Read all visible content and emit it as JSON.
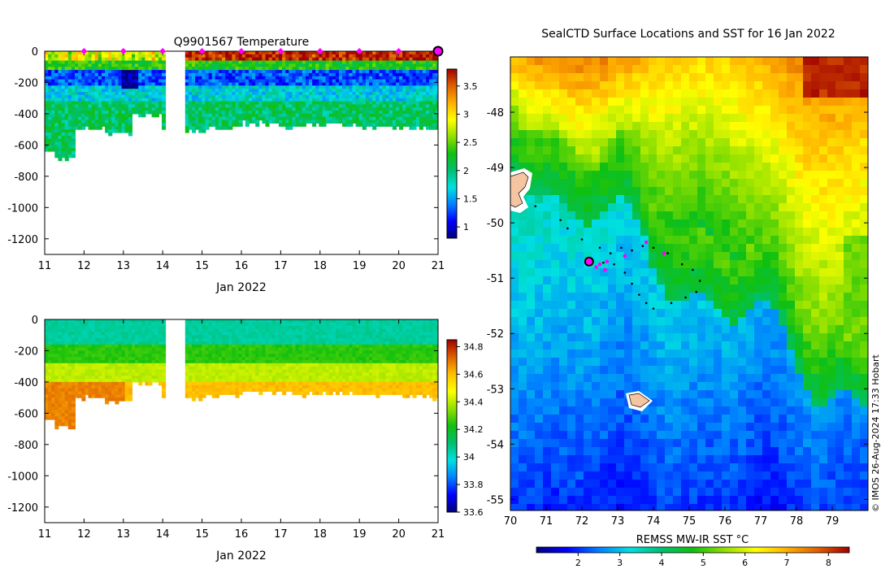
{
  "colors": {
    "temp_scale": [
      "#00007f",
      "#0000ff",
      "#0080ff",
      "#00e0e0",
      "#00c070",
      "#10c010",
      "#90e000",
      "#ffff00",
      "#ffb000",
      "#e06000",
      "#a00000"
    ],
    "sal_scale": [
      "#00007f",
      "#0000ff",
      "#0080ff",
      "#00e0e0",
      "#00c070",
      "#10c010",
      "#90e000",
      "#ffff00",
      "#ffc000",
      "#e06000",
      "#a00000"
    ],
    "sst_scale": [
      "#00007f",
      "#0000ff",
      "#0080ff",
      "#00e0e0",
      "#00c070",
      "#10c010",
      "#90e000",
      "#ffff00",
      "#ffb000",
      "#e06000",
      "#a00000"
    ],
    "surface_marker": "#ff00ff",
    "track_point": "#000000",
    "land": "#f5c4a0"
  },
  "chart_data": [
    {
      "type": "heatmap",
      "name": "temperature-section",
      "title": "Q9901567  Temperature",
      "xlabel": "Jan 2022",
      "ylabel": "",
      "x_ticks": [
        "11",
        "12",
        "13",
        "14",
        "15",
        "16",
        "17",
        "18",
        "19",
        "20",
        "21"
      ],
      "xlim": [
        11,
        21
      ],
      "y_ticks": [
        "0",
        "-200",
        "-400",
        "-600",
        "-800",
        "-1000",
        "-1200"
      ],
      "ylim": [
        -1300,
        0
      ],
      "colorbar": {
        "ticks": [
          "1",
          "1.5",
          "2",
          "2.5",
          "3",
          "3.5"
        ],
        "range": [
          0.8,
          3.8
        ]
      },
      "surface_markers_days": [
        12,
        13,
        14,
        15,
        16,
        17,
        18,
        19,
        20
      ],
      "last_profile_marker_day": 21,
      "gap_days": [
        14.05,
        14.55
      ],
      "profile_depth_bottoms": [
        {
          "day": 11.0,
          "depth": 635
        },
        {
          "day": 11.5,
          "depth": 680
        },
        {
          "day": 12.0,
          "depth": 490
        },
        {
          "day": 13.0,
          "depth": 515
        },
        {
          "day": 13.3,
          "depth": 400
        },
        {
          "day": 14.6,
          "depth": 495
        },
        {
          "day": 15.5,
          "depth": 475
        },
        {
          "day": 16.5,
          "depth": 450
        },
        {
          "day": 17.5,
          "depth": 470
        },
        {
          "day": 18.5,
          "depth": 460
        },
        {
          "day": 19.5,
          "depth": 475
        },
        {
          "day": 20.5,
          "depth": 480
        },
        {
          "day": 21.0,
          "depth": 490
        }
      ],
      "layers": [
        {
          "from": 0,
          "to": 60,
          "value": 3.6
        },
        {
          "from": 60,
          "to": 120,
          "value": 2.3
        },
        {
          "from": 120,
          "to": 220,
          "value": 1.3
        },
        {
          "from": 220,
          "to": 320,
          "value": 1.7
        },
        {
          "from": 320,
          "to": 700,
          "value": 2.05
        }
      ]
    },
    {
      "type": "heatmap",
      "name": "salinity-section",
      "title": "",
      "xlabel": "Jan 2022",
      "ylabel": "",
      "x_ticks": [
        "11",
        "12",
        "13",
        "14",
        "15",
        "16",
        "17",
        "18",
        "19",
        "20",
        "21"
      ],
      "xlim": [
        11,
        21
      ],
      "y_ticks": [
        "0",
        "-200",
        "-400",
        "-600",
        "-800",
        "-1000",
        "-1200"
      ],
      "ylim": [
        -1300,
        0
      ],
      "colorbar": {
        "ticks": [
          "33.6",
          "33.8",
          "34",
          "34.2",
          "34.4",
          "34.6",
          "34.8"
        ],
        "range": [
          33.6,
          34.85
        ]
      },
      "layers": [
        {
          "from": 0,
          "to": 150,
          "value": 34.05
        },
        {
          "from": 150,
          "to": 280,
          "value": 34.25
        },
        {
          "from": 280,
          "to": 400,
          "value": 34.4
        },
        {
          "from": 400,
          "to": 700,
          "value": 34.6
        }
      ]
    },
    {
      "type": "heatmap",
      "name": "sst-map",
      "title": "SealCTD Surface Locations and SST for 16 Jan 2022",
      "xlabel": "",
      "ylabel": "",
      "x_ticks": [
        "70",
        "71",
        "72",
        "73",
        "74",
        "75",
        "76",
        "77",
        "78",
        "79"
      ],
      "xlim": [
        70,
        80
      ],
      "y_ticks": [
        "-48",
        "-49",
        "-50",
        "-51",
        "-52",
        "-53",
        "-54",
        "-55"
      ],
      "ylim": [
        -55.2,
        -47.0
      ],
      "colorbar": {
        "label": "REMSS MW-IR SST °C",
        "ticks": [
          "2",
          "3",
          "4",
          "5",
          "6",
          "7",
          "8"
        ],
        "range": [
          1.0,
          8.5
        ]
      },
      "latest_position": {
        "lon": 72.2,
        "lat": -50.7
      },
      "track": [
        [
          70.7,
          -49.7
        ],
        [
          71.4,
          -49.95
        ],
        [
          71.6,
          -50.1
        ],
        [
          72.0,
          -50.3
        ],
        [
          72.5,
          -50.45
        ],
        [
          72.8,
          -50.55
        ],
        [
          73.1,
          -50.45
        ],
        [
          73.4,
          -50.5
        ],
        [
          73.7,
          -50.42
        ],
        [
          74.0,
          -50.45
        ],
        [
          74.4,
          -50.55
        ],
        [
          74.8,
          -50.75
        ],
        [
          75.1,
          -50.85
        ],
        [
          75.3,
          -51.05
        ],
        [
          75.2,
          -51.25
        ],
        [
          74.9,
          -51.35
        ],
        [
          74.5,
          -51.45
        ],
        [
          74.0,
          -51.55
        ],
        [
          73.8,
          -51.45
        ],
        [
          73.6,
          -51.3
        ],
        [
          73.4,
          -51.1
        ],
        [
          73.2,
          -50.9
        ],
        [
          72.9,
          -50.75
        ],
        [
          72.6,
          -50.72
        ]
      ],
      "surface_locations": [
        [
          72.5,
          -50.75
        ],
        [
          72.7,
          -50.7
        ],
        [
          73.2,
          -50.6
        ],
        [
          73.8,
          -50.35
        ],
        [
          74.3,
          -50.55
        ],
        [
          72.4,
          -50.8
        ],
        [
          72.65,
          -50.85
        ]
      ]
    }
  ],
  "watermark": "© IMOS 26-Aug-2024 17:33 Hobart"
}
